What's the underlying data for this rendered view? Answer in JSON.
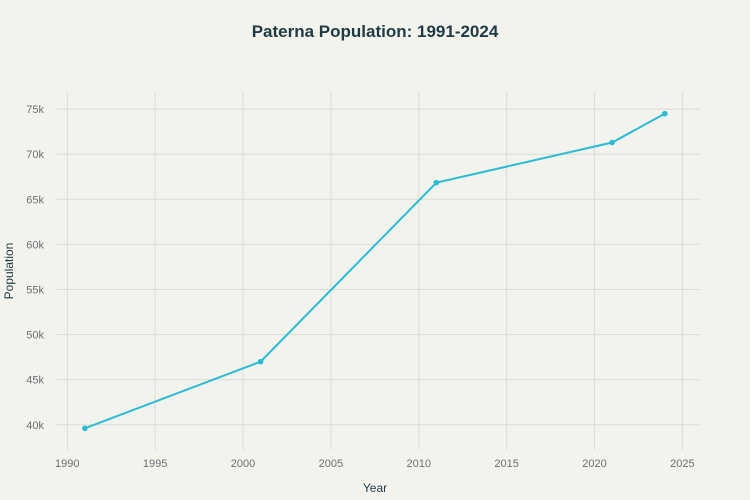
{
  "chart_data": {
    "type": "line",
    "title": "Paterna Population: 1991-2024",
    "xlabel": "Year",
    "ylabel": "Population",
    "x": [
      1991,
      2001,
      2011,
      2021,
      2024
    ],
    "series": [
      {
        "name": "Population",
        "values": [
          39600,
          47000,
          66850,
          71300,
          74500
        ],
        "color": "#2bbcd4"
      }
    ],
    "xlim": [
      1989.3,
      2026
    ],
    "ylim": [
      37200,
      76900
    ],
    "xticks": [
      1990,
      1995,
      2000,
      2005,
      2010,
      2015,
      2020,
      2025
    ],
    "xtick_labels": [
      "1990",
      "1995",
      "2000",
      "2005",
      "2010",
      "2015",
      "2020",
      "2025"
    ],
    "yticks": [
      40000,
      45000,
      50000,
      55000,
      60000,
      65000,
      70000,
      75000
    ],
    "ytick_labels": [
      "40k",
      "45k",
      "50k",
      "55k",
      "60k",
      "65k",
      "70k",
      "75k"
    ],
    "grid": true,
    "legend": "none"
  }
}
